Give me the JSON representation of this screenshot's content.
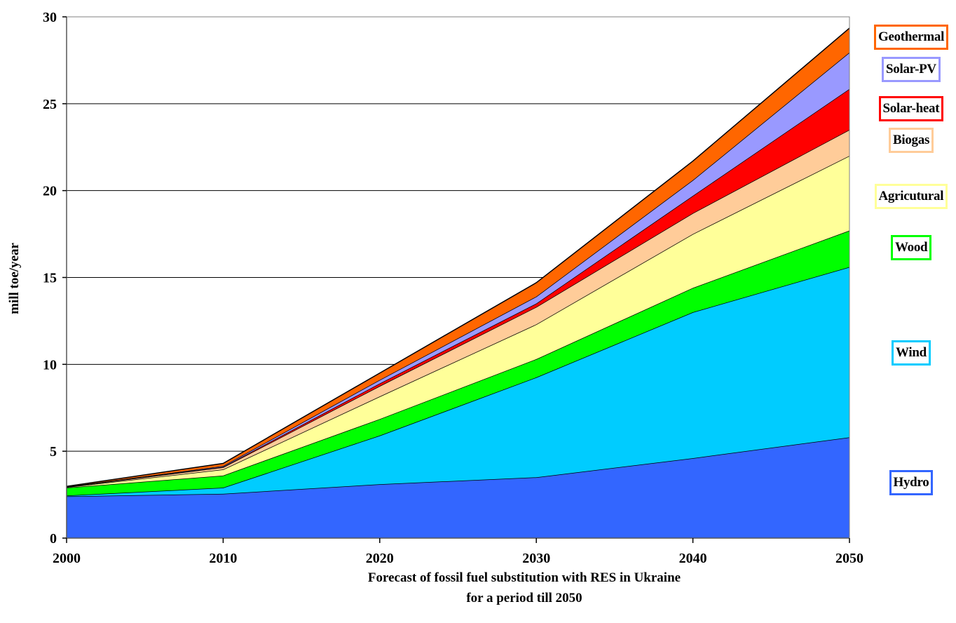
{
  "chart_data": {
    "type": "area",
    "stacked": true,
    "xlabel": "Forecast of fossil fuel substitution with RES in Ukraine",
    "xlabel_line2": "for a period till 2050",
    "ylabel": "mill toe/year",
    "x": [
      2000,
      2010,
      2020,
      2030,
      2040,
      2050
    ],
    "x_tick_labels": [
      "2000",
      "2010",
      "2020",
      "2030",
      "2040",
      "2050"
    ],
    "ylim": [
      0,
      30
    ],
    "y_ticks": [
      0,
      5,
      10,
      15,
      20,
      25,
      30
    ],
    "y_tick_labels": [
      "0",
      "5",
      "10",
      "15",
      "20",
      "25",
      "30"
    ],
    "grid": "horizontal",
    "legend_placement": "right",
    "series": [
      {
        "name": "Hydro",
        "color": "#3366FF",
        "values": [
          2.4,
          2.55,
          3.1,
          3.5,
          4.6,
          5.8
        ]
      },
      {
        "name": "Wind",
        "color": "#00CCFF",
        "values": [
          0.05,
          0.35,
          2.8,
          5.75,
          8.4,
          9.8
        ]
      },
      {
        "name": "Wood",
        "color": "#00FF00",
        "values": [
          0.45,
          0.7,
          0.95,
          1.05,
          1.4,
          2.1
        ]
      },
      {
        "name": "Agricutural",
        "color": "#FFFF99",
        "values": [
          0.03,
          0.35,
          1.3,
          2.0,
          3.1,
          4.3
        ]
      },
      {
        "name": "Biogas",
        "color": "#FFCC99",
        "values": [
          0.01,
          0.12,
          0.6,
          1.0,
          1.2,
          1.5
        ]
      },
      {
        "name": "Solar-heat",
        "color": "#FF0000",
        "values": [
          0.01,
          0.03,
          0.15,
          0.2,
          1.0,
          2.35
        ]
      },
      {
        "name": "Solar-PV",
        "color": "#9999FF",
        "values": [
          0.01,
          0.05,
          0.2,
          0.4,
          0.9,
          2.1
        ]
      },
      {
        "name": "Geothermal",
        "color": "#FF6600",
        "values": [
          0.02,
          0.15,
          0.4,
          0.8,
          1.1,
          1.4
        ]
      }
    ]
  }
}
